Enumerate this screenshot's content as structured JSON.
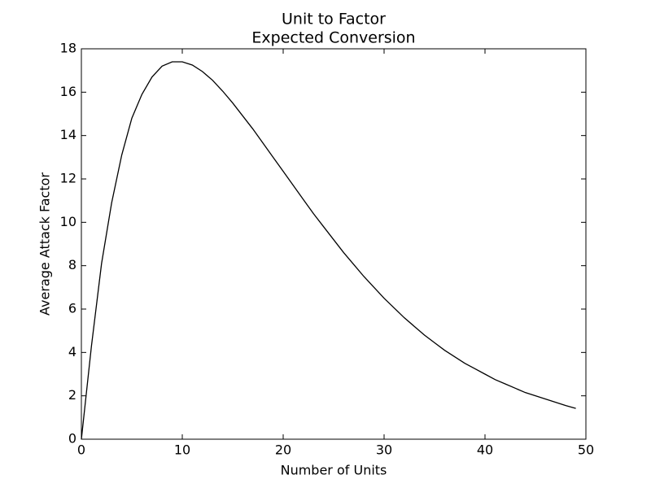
{
  "chart_data": {
    "type": "line",
    "title": [
      "Unit to Factor",
      "Expected Conversion"
    ],
    "xlabel": "Number of Units",
    "ylabel": "Average Attack Factor",
    "x": [
      0,
      1,
      2,
      3,
      4,
      5,
      6,
      7,
      8,
      9,
      10,
      11,
      12,
      13,
      14,
      15,
      16,
      17,
      18,
      19,
      20,
      21,
      22,
      23,
      24,
      25,
      26,
      27,
      28,
      29,
      30,
      31,
      32,
      33,
      34,
      35,
      36,
      37,
      38,
      39,
      40,
      41,
      42,
      43,
      44,
      45,
      46,
      47,
      48,
      49
    ],
    "series": [
      {
        "color": "#000000",
        "values": [
          0,
          4.3,
          8.1,
          10.9,
          13.1,
          14.8,
          15.9,
          16.7,
          17.2,
          17.4,
          17.4,
          17.25,
          16.95,
          16.55,
          16.05,
          15.5,
          14.9,
          14.3,
          13.65,
          13.0,
          12.35,
          11.7,
          11.05,
          10.4,
          9.8,
          9.2,
          8.6,
          8.05,
          7.5,
          7.0,
          6.5,
          6.05,
          5.6,
          5.2,
          4.8,
          4.45,
          4.1,
          3.8,
          3.5,
          3.25,
          3.0,
          2.75,
          2.55,
          2.35,
          2.15,
          2.0,
          1.85,
          1.7,
          1.55,
          1.42
        ]
      }
    ],
    "xlim": [
      0,
      50
    ],
    "xticks": [
      0,
      10,
      20,
      30,
      40,
      50
    ],
    "ylim": [
      0,
      18
    ],
    "yticks": [
      0,
      2,
      4,
      6,
      8,
      10,
      12,
      14,
      16,
      18
    ]
  }
}
